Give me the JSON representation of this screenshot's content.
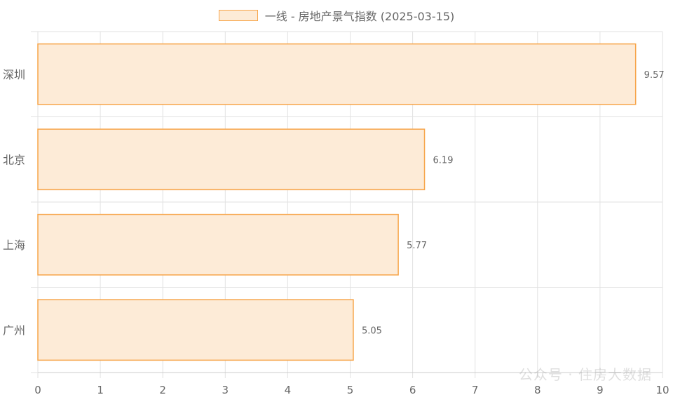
{
  "legend": {
    "label": "一线 - 房地产景气指数 (2025-03-15)"
  },
  "watermark": "公众号 · 住房大数据",
  "colors": {
    "bar_fill": "#fdebd7",
    "bar_stroke": "#f7a54a",
    "grid": "#e2e2e2",
    "axis_text": "#666666"
  },
  "chart_data": {
    "type": "bar",
    "orientation": "horizontal",
    "categories": [
      "深圳",
      "北京",
      "上海",
      "广州"
    ],
    "series": [
      {
        "name": "一线 - 房地产景气指数 (2025-03-15)",
        "values": [
          9.57,
          6.19,
          5.77,
          5.05
        ]
      }
    ],
    "data_labels": [
      "9.57",
      "6.19",
      "5.77",
      "5.05"
    ],
    "xlim": [
      0,
      10
    ],
    "xticks": [
      "0",
      "1",
      "2",
      "3",
      "4",
      "5",
      "6",
      "7",
      "8",
      "9",
      "10"
    ],
    "grid": true,
    "legend_position": "top-center"
  }
}
